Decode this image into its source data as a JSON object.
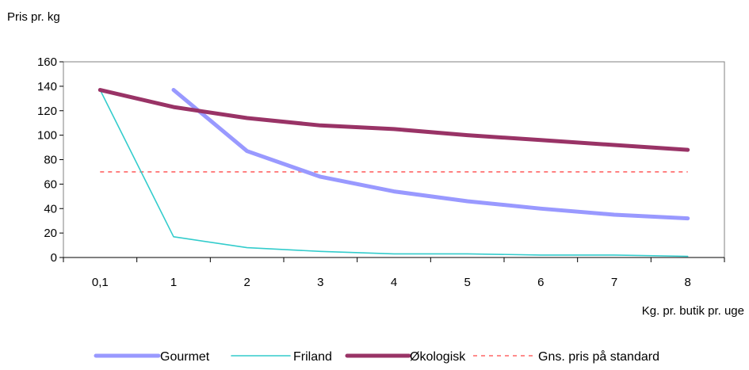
{
  "chart_data": {
    "type": "line",
    "title": "",
    "ylabel": "Pris pr. kg",
    "xlabel": "Kg. pr. butik pr. uge",
    "categories": [
      "0,1",
      "1",
      "2",
      "3",
      "4",
      "5",
      "6",
      "7",
      "8"
    ],
    "ylim": [
      0,
      160
    ],
    "yticks": [
      0,
      20,
      40,
      60,
      80,
      100,
      120,
      140,
      160
    ],
    "grid": false,
    "legend": "bottom",
    "series": [
      {
        "name": "Gourmet",
        "color": "#9999ff",
        "style": "thick",
        "values": [
          null,
          137,
          87,
          66,
          54,
          46,
          40,
          35,
          32
        ]
      },
      {
        "name": "Friland",
        "color": "#33cccc",
        "style": "thin",
        "values": [
          137,
          17,
          8,
          5,
          3,
          3,
          2,
          2,
          1
        ]
      },
      {
        "name": "Økologisk",
        "color": "#993366",
        "style": "thick",
        "values": [
          137,
          123,
          114,
          108,
          105,
          100,
          96,
          92,
          88
        ]
      },
      {
        "name": "Gns. pris på standard",
        "color": "#ff6666",
        "style": "dashed",
        "values": [
          70,
          70,
          70,
          70,
          70,
          70,
          70,
          70,
          70
        ]
      }
    ]
  }
}
